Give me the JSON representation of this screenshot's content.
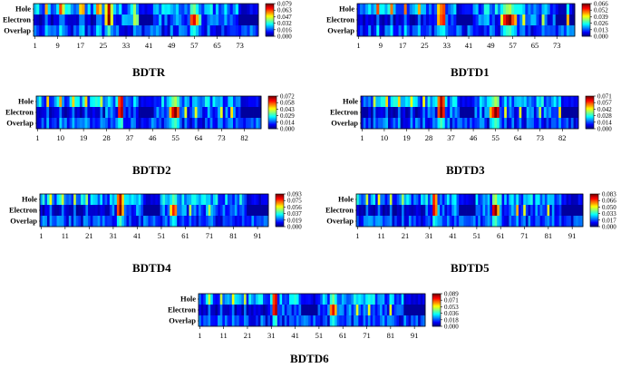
{
  "chart_data": [
    {
      "type": "heatmap",
      "title": "BDTR",
      "rows": [
        "Hole",
        "Electron",
        "Overlap"
      ],
      "xticks": [
        1,
        9,
        17,
        25,
        33,
        41,
        49,
        57,
        65,
        73
      ],
      "ncols": 79,
      "colorbar_ticks": [
        "0.079",
        "0.063",
        "0.047",
        "0.032",
        "0.016",
        "0.000"
      ],
      "vmax": 0.079,
      "hot": [
        [
          4,
          0.75
        ],
        [
          9,
          0.85
        ],
        [
          10,
          0.6
        ],
        [
          16,
          0.7
        ],
        [
          17,
          0.75
        ],
        [
          22,
          0.8
        ],
        [
          23,
          0.7
        ],
        [
          25,
          0.65
        ],
        [
          26,
          1.0
        ],
        [
          27,
          0.6
        ],
        [
          35,
          0.55
        ],
        [
          36,
          0.5
        ],
        [
          55,
          0.8
        ],
        [
          56,
          0.9
        ],
        [
          57,
          0.7
        ],
        [
          58,
          0.45
        ]
      ]
    },
    {
      "type": "heatmap",
      "title": "BDTD1",
      "rows": [
        "Hole",
        "Electron",
        "Overlap"
      ],
      "xticks": [
        1,
        9,
        17,
        25,
        33,
        41,
        49,
        57,
        65,
        73
      ],
      "ncols": 79,
      "colorbar_ticks": [
        "0.066",
        "0.052",
        "0.039",
        "0.026",
        "0.013",
        "0.000"
      ],
      "vmax": 0.066,
      "hot": [
        [
          7,
          0.85
        ],
        [
          12,
          0.8
        ],
        [
          17,
          0.8
        ],
        [
          22,
          0.75
        ],
        [
          29,
          0.7
        ],
        [
          30,
          0.8
        ],
        [
          31,
          0.85
        ],
        [
          52,
          0.6
        ],
        [
          53,
          0.85
        ],
        [
          54,
          0.95
        ],
        [
          55,
          1.0
        ],
        [
          56,
          0.8
        ],
        [
          57,
          0.7
        ],
        [
          60,
          0.6
        ],
        [
          67,
          0.55
        ],
        [
          76,
          0.7
        ]
      ]
    },
    {
      "type": "heatmap",
      "title": "BDTD2",
      "rows": [
        "Hole",
        "Electron",
        "Overlap"
      ],
      "xticks": [
        1,
        10,
        19,
        28,
        37,
        46,
        55,
        64,
        73,
        82
      ],
      "ncols": 88,
      "colorbar_ticks": [
        "0.072",
        "0.058",
        "0.043",
        "0.029",
        "0.014",
        "0.000"
      ],
      "vmax": 0.072,
      "hot": [
        [
          4,
          0.7
        ],
        [
          9,
          0.75
        ],
        [
          14,
          0.7
        ],
        [
          19,
          0.7
        ],
        [
          25,
          0.6
        ],
        [
          32,
          0.85
        ],
        [
          33,
          0.95
        ],
        [
          52,
          0.7
        ],
        [
          53,
          0.9
        ],
        [
          54,
          1.0
        ],
        [
          55,
          0.8
        ],
        [
          58,
          0.6
        ],
        [
          62,
          0.6
        ],
        [
          72,
          0.6
        ],
        [
          76,
          0.65
        ]
      ]
    },
    {
      "type": "heatmap",
      "title": "BDTD3",
      "rows": [
        "Hole",
        "Electron",
        "Overlap"
      ],
      "xticks": [
        1,
        10,
        19,
        28,
        37,
        46,
        55,
        64,
        73,
        82
      ],
      "ncols": 88,
      "colorbar_ticks": [
        "0.071",
        "0.057",
        "0.042",
        "0.028",
        "0.014",
        "0.000"
      ],
      "vmax": 0.071,
      "hot": [
        [
          5,
          0.6
        ],
        [
          10,
          0.7
        ],
        [
          15,
          0.7
        ],
        [
          20,
          0.65
        ],
        [
          25,
          0.65
        ],
        [
          31,
          0.8
        ],
        [
          32,
          1.0
        ],
        [
          33,
          0.85
        ],
        [
          52,
          0.7
        ],
        [
          53,
          0.85
        ],
        [
          54,
          1.0
        ],
        [
          55,
          0.9
        ],
        [
          58,
          0.6
        ],
        [
          64,
          0.6
        ],
        [
          72,
          0.55
        ],
        [
          80,
          0.65
        ]
      ]
    },
    {
      "type": "heatmap",
      "title": "BDTD4",
      "rows": [
        "Hole",
        "Electron",
        "Overlap"
      ],
      "xticks": [
        1,
        11,
        21,
        31,
        41,
        51,
        61,
        71,
        81,
        91
      ],
      "ncols": 95,
      "colorbar_ticks": [
        "0.093",
        "0.075",
        "0.056",
        "0.037",
        "0.019",
        "0.000"
      ],
      "vmax": 0.093,
      "hot": [
        [
          4,
          0.65
        ],
        [
          9,
          0.6
        ],
        [
          14,
          0.6
        ],
        [
          19,
          0.55
        ],
        [
          32,
          0.8
        ],
        [
          33,
          1.0
        ],
        [
          34,
          0.7
        ],
        [
          54,
          0.65
        ],
        [
          55,
          0.85
        ],
        [
          56,
          0.75
        ],
        [
          62,
          0.55
        ],
        [
          70,
          0.55
        ]
      ]
    },
    {
      "type": "heatmap",
      "title": "BDTD5",
      "rows": [
        "Hole",
        "Electron",
        "Overlap"
      ],
      "xticks": [
        1,
        11,
        21,
        31,
        41,
        51,
        61,
        71,
        81,
        91
      ],
      "ncols": 95,
      "colorbar_ticks": [
        "0.083",
        "0.066",
        "0.050",
        "0.033",
        "0.017",
        "0.000"
      ],
      "vmax": 0.083,
      "hot": [
        [
          4,
          0.6
        ],
        [
          9,
          0.65
        ],
        [
          14,
          0.6
        ],
        [
          19,
          0.55
        ],
        [
          32,
          0.9
        ],
        [
          33,
          0.75
        ],
        [
          57,
          0.9
        ],
        [
          58,
          1.0
        ],
        [
          59,
          0.7
        ],
        [
          67,
          0.7
        ],
        [
          70,
          0.6
        ],
        [
          80,
          0.6
        ]
      ]
    },
    {
      "type": "heatmap",
      "title": "BDTD6",
      "rows": [
        "Hole",
        "Electron",
        "Overlap"
      ],
      "xticks": [
        1,
        11,
        21,
        31,
        41,
        51,
        61,
        71,
        81,
        91
      ],
      "ncols": 95,
      "colorbar_ticks": [
        "0.089",
        "0.071",
        "0.053",
        "0.036",
        "0.018",
        "0.000"
      ],
      "vmax": 0.089,
      "hot": [
        [
          4,
          0.6
        ],
        [
          9,
          0.6
        ],
        [
          14,
          0.65
        ],
        [
          19,
          0.6
        ],
        [
          31,
          0.85
        ],
        [
          32,
          0.95
        ],
        [
          55,
          0.75
        ],
        [
          56,
          0.9
        ],
        [
          57,
          0.7
        ],
        [
          66,
          0.6
        ],
        [
          71,
          0.6
        ],
        [
          80,
          0.6
        ]
      ]
    }
  ]
}
